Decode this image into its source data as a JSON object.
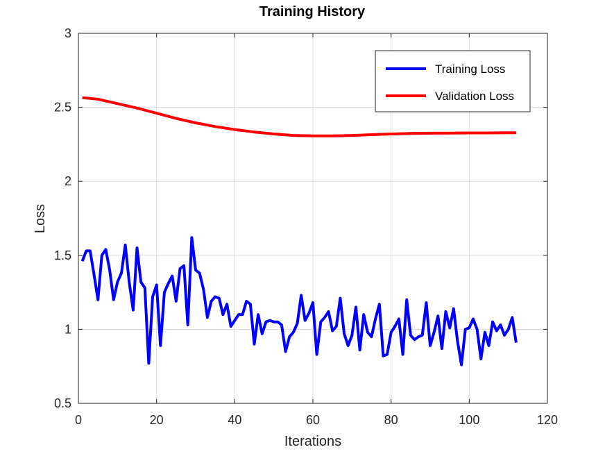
{
  "chart_data": {
    "type": "line",
    "title": "Training History",
    "xlabel": "Iterations",
    "ylabel": "Loss",
    "xlim": [
      0,
      120
    ],
    "ylim": [
      0.5,
      3
    ],
    "xticks": [
      0,
      20,
      40,
      60,
      80,
      100,
      120
    ],
    "yticks": [
      0.5,
      1,
      1.5,
      2,
      2.5,
      3
    ],
    "ytick_labels": [
      "0.5",
      "1",
      "1.5",
      "2",
      "2.5",
      "3"
    ],
    "grid": true,
    "legend_position": "top-right",
    "series": [
      {
        "name": "Training Loss",
        "color": "#0000ff",
        "x": [
          1,
          2,
          3,
          4,
          5,
          6,
          7,
          8,
          9,
          10,
          11,
          12,
          13,
          14,
          15,
          16,
          17,
          18,
          19,
          20,
          21,
          22,
          23,
          24,
          25,
          26,
          27,
          28,
          29,
          30,
          31,
          32,
          33,
          34,
          35,
          36,
          37,
          38,
          39,
          40,
          41,
          42,
          43,
          44,
          45,
          46,
          47,
          48,
          49,
          50,
          51,
          52,
          53,
          54,
          55,
          56,
          57,
          58,
          59,
          60,
          61,
          62,
          63,
          64,
          65,
          66,
          67,
          68,
          69,
          70,
          71,
          72,
          73,
          74,
          75,
          76,
          77,
          78,
          79,
          80,
          81,
          82,
          83,
          84,
          85,
          86,
          87,
          88,
          89,
          90,
          91,
          92,
          93,
          94,
          95,
          96,
          97,
          98,
          99,
          100,
          101,
          102,
          103,
          104,
          105,
          106,
          107,
          108,
          109,
          110,
          111,
          112
        ],
        "y": [
          1.46,
          1.53,
          1.53,
          1.37,
          1.2,
          1.5,
          1.54,
          1.4,
          1.2,
          1.32,
          1.38,
          1.57,
          1.32,
          1.13,
          1.55,
          1.32,
          1.28,
          0.77,
          1.22,
          1.3,
          0.89,
          1.25,
          1.31,
          1.36,
          1.19,
          1.41,
          1.43,
          1.03,
          1.62,
          1.4,
          1.38,
          1.27,
          1.08,
          1.19,
          1.22,
          1.21,
          1.1,
          1.17,
          1.02,
          1.06,
          1.1,
          1.1,
          1.19,
          1.17,
          0.9,
          1.1,
          0.97,
          1.05,
          1.06,
          1.05,
          1.05,
          1.03,
          0.85,
          0.95,
          0.98,
          1.04,
          1.23,
          1.06,
          1.11,
          1.18,
          0.83,
          1.05,
          1.08,
          1.12,
          0.99,
          1.02,
          1.21,
          0.97,
          0.89,
          0.96,
          1.15,
          0.86,
          1.1,
          0.98,
          0.95,
          1.07,
          1.17,
          0.82,
          0.83,
          0.98,
          1.02,
          1.07,
          0.83,
          1.2,
          0.96,
          0.93,
          0.95,
          0.96,
          1.18,
          0.89,
          0.98,
          1.09,
          0.87,
          1.12,
          1.01,
          1.14,
          0.92,
          0.76,
          1.0,
          1.01,
          1.07,
          1.0,
          0.8,
          0.98,
          0.89,
          1.05,
          0.99,
          1.03,
          0.96,
          1.0,
          1.08,
          0.91
        ]
      },
      {
        "name": "Validation Loss",
        "color": "#ff0000",
        "x": [
          1,
          5,
          10,
          15,
          20,
          25,
          30,
          35,
          40,
          45,
          50,
          55,
          60,
          65,
          70,
          75,
          80,
          85,
          90,
          95,
          100,
          105,
          110,
          112
        ],
        "y": [
          2.565,
          2.555,
          2.525,
          2.495,
          2.46,
          2.425,
          2.395,
          2.37,
          2.35,
          2.333,
          2.32,
          2.31,
          2.307,
          2.307,
          2.31,
          2.315,
          2.32,
          2.323,
          2.325,
          2.326,
          2.327,
          2.327,
          2.328,
          2.328
        ]
      }
    ]
  }
}
